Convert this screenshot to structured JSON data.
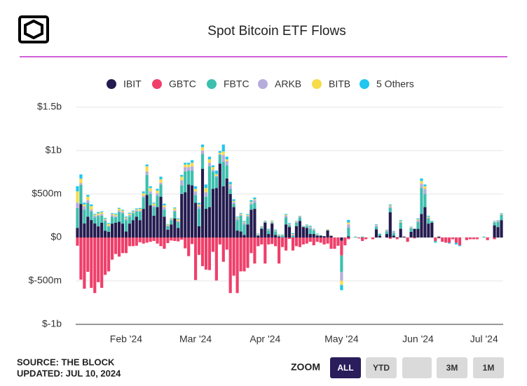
{
  "chart_data": {
    "type": "bar",
    "stacked": true,
    "title": "Spot Bitcoin ETF Flows",
    "categories": [
      null,
      null,
      null,
      null,
      null,
      null,
      null,
      null,
      null,
      null,
      null,
      null,
      null,
      null,
      "Feb '24",
      null,
      null,
      null,
      null,
      null,
      null,
      null,
      null,
      null,
      null,
      null,
      null,
      null,
      null,
      null,
      null,
      null,
      null,
      null,
      "Mar '24",
      null,
      null,
      null,
      null,
      null,
      null,
      null,
      null,
      null,
      null,
      null,
      null,
      null,
      null,
      null,
      null,
      null,
      null,
      null,
      "Apr '24",
      null,
      null,
      null,
      null,
      null,
      null,
      null,
      null,
      null,
      null,
      null,
      null,
      null,
      null,
      null,
      null,
      null,
      null,
      null,
      null,
      null,
      "May '24",
      null,
      null,
      null,
      null,
      null,
      null,
      null,
      null,
      null,
      null,
      null,
      null,
      null,
      null,
      null,
      null,
      null,
      null,
      null,
      null,
      null,
      "Jun '24",
      null,
      null,
      null,
      null,
      null,
      null,
      null,
      null,
      null,
      null,
      null,
      null,
      null,
      null,
      null,
      null,
      null,
      null,
      "Jul '24",
      null,
      null,
      null,
      null,
      null
    ],
    "series": [
      {
        "name": "IBIT",
        "color": "#241b4f",
        "values": [
          111,
          386,
          161,
          240,
          201,
          161,
          128,
          170,
          79,
          66,
          160,
          170,
          181,
          160,
          70,
          160,
          200,
          240,
          200,
          330,
          490,
          370,
          250,
          350,
          470,
          240,
          90,
          150,
          220,
          110,
          500,
          520,
          610,
          600,
          400,
          130,
          790,
          330,
          350,
          560,
          570,
          850,
          590,
          680,
          500,
          350,
          80,
          70,
          30,
          150,
          320,
          330,
          20,
          100,
          170,
          40,
          160,
          30,
          10,
          0,
          150,
          120,
          0,
          130,
          190,
          120,
          110,
          40,
          40,
          20,
          20,
          15,
          80,
          20,
          0,
          0,
          -37,
          0,
          12,
          0,
          0,
          0,
          0,
          0,
          0,
          0,
          93,
          19,
          0,
          40,
          290,
          20,
          4,
          100,
          10,
          0,
          65,
          100,
          100,
          270,
          350,
          160,
          170,
          0,
          10,
          0,
          0,
          0,
          0,
          0,
          0,
          0,
          0,
          0,
          0,
          0,
          0,
          0,
          0,
          0,
          140,
          120,
          200
        ]
      },
      {
        "name": "GBTC",
        "color": "#ef3f6a",
        "values": [
          -95,
          -485,
          -590,
          -395,
          -580,
          -640,
          -515,
          -580,
          -430,
          -390,
          -255,
          -190,
          -220,
          -180,
          -180,
          -100,
          -100,
          -95,
          -55,
          -70,
          -60,
          -50,
          -40,
          -70,
          -100,
          -130,
          -65,
          -35,
          -40,
          -45,
          -25,
          -125,
          -215,
          -75,
          -490,
          -200,
          -330,
          -370,
          -375,
          -165,
          -495,
          -80,
          -280,
          -140,
          -640,
          -440,
          -640,
          -390,
          -390,
          -350,
          -180,
          -300,
          -100,
          -80,
          -300,
          -80,
          -75,
          -100,
          -300,
          -110,
          -150,
          -17,
          -150,
          -100,
          -110,
          -80,
          -70,
          -50,
          -90,
          -50,
          -60,
          -80,
          -70,
          -130,
          -130,
          -95,
          -170,
          -90,
          -20,
          0,
          0,
          -10,
          -40,
          -20,
          0,
          -20,
          0,
          0,
          0,
          0,
          -15,
          0,
          -20,
          0,
          0,
          -50,
          0,
          -10,
          0,
          0,
          0,
          0,
          0,
          -40,
          -10,
          -50,
          -60,
          -60,
          -20,
          -60,
          -90,
          0,
          -30,
          -20,
          -20,
          -20,
          0,
          0,
          -30,
          0,
          -20,
          0,
          0
        ]
      },
      {
        "name": "FBTC",
        "color": "#3dbfae",
        "values": [
          230,
          220,
          160,
          160,
          100,
          70,
          120,
          80,
          110,
          60,
          80,
          60,
          110,
          120,
          130,
          80,
          80,
          60,
          100,
          130,
          230,
          130,
          100,
          130,
          140,
          80,
          40,
          50,
          80,
          70,
          100,
          240,
          160,
          170,
          90,
          200,
          170,
          140,
          470,
          200,
          130,
          100,
          280,
          150,
          60,
          40,
          120,
          180,
          120,
          90,
          60,
          70,
          5,
          10,
          10,
          40,
          10,
          40,
          10,
          20,
          80,
          20,
          20,
          40,
          40,
          0,
          20,
          60,
          40,
          10,
          5,
          0,
          5,
          0,
          0,
          0,
          -190,
          0,
          100,
          0,
          10,
          0,
          10,
          0,
          0,
          0,
          30,
          20,
          0,
          30,
          50,
          30,
          0,
          70,
          0,
          0,
          40,
          0,
          80,
          300,
          150,
          60,
          20,
          -10,
          0,
          0,
          0,
          0,
          0,
          0,
          0,
          0,
          0,
          0,
          0,
          0,
          0,
          10,
          0,
          0,
          30,
          60,
          60
        ]
      },
      {
        "name": "ARKB",
        "color": "#b6acdc",
        "values": [
          60,
          20,
          40,
          30,
          20,
          20,
          10,
          20,
          15,
          10,
          20,
          15,
          20,
          15,
          20,
          20,
          10,
          15,
          10,
          20,
          40,
          30,
          20,
          30,
          20,
          30,
          10,
          10,
          15,
          10,
          60,
          50,
          40,
          50,
          40,
          30,
          40,
          50,
          40,
          20,
          10,
          10,
          80,
          50,
          40,
          20,
          20,
          10,
          20,
          10,
          20,
          30,
          10,
          10,
          5,
          5,
          10,
          5,
          5,
          5,
          20,
          10,
          10,
          10,
          10,
          5,
          10,
          20,
          10,
          5,
          0,
          0,
          5,
          0,
          0,
          0,
          -100,
          0,
          40,
          0,
          0,
          0,
          0,
          0,
          0,
          0,
          20,
          0,
          0,
          10,
          20,
          20,
          0,
          10,
          0,
          0,
          10,
          0,
          20,
          50,
          60,
          10,
          0,
          0,
          0,
          0,
          0,
          0,
          0,
          0,
          0,
          0,
          0,
          0,
          0,
          0,
          0,
          0,
          0,
          0,
          10,
          10,
          10
        ]
      },
      {
        "name": "BITB",
        "color": "#f7dc4a",
        "values": [
          130,
          50,
          20,
          40,
          40,
          10,
          20,
          20,
          10,
          20,
          10,
          20,
          20,
          15,
          10,
          15,
          10,
          10,
          20,
          30,
          60,
          40,
          20,
          30,
          40,
          20,
          10,
          10,
          20,
          20,
          40,
          30,
          30,
          40,
          30,
          20,
          40,
          50,
          40,
          30,
          20,
          15,
          40,
          20,
          10,
          10,
          10,
          10,
          10,
          10,
          10,
          10,
          5,
          5,
          5,
          5,
          10,
          5,
          5,
          5,
          10,
          5,
          10,
          5,
          5,
          5,
          5,
          5,
          5,
          5,
          0,
          0,
          5,
          0,
          0,
          0,
          -50,
          0,
          20,
          0,
          0,
          0,
          0,
          0,
          0,
          0,
          5,
          0,
          0,
          5,
          10,
          0,
          0,
          10,
          0,
          0,
          5,
          0,
          10,
          30,
          30,
          10,
          0,
          0,
          0,
          0,
          0,
          0,
          0,
          0,
          0,
          0,
          0,
          0,
          0,
          0,
          0,
          0,
          0,
          0,
          5,
          5,
          5
        ]
      },
      {
        "name": "5 Others",
        "color": "#1fc7ef",
        "values": [
          60,
          50,
          20,
          20,
          20,
          10,
          15,
          10,
          10,
          10,
          10,
          10,
          10,
          10,
          10,
          10,
          10,
          10,
          10,
          20,
          20,
          20,
          10,
          20,
          30,
          20,
          5,
          5,
          10,
          10,
          20,
          20,
          20,
          30,
          30,
          20,
          30,
          40,
          30,
          20,
          40,
          20,
          80,
          30,
          30,
          20,
          10,
          10,
          10,
          10,
          20,
          20,
          5,
          5,
          5,
          10,
          5,
          10,
          5,
          5,
          10,
          10,
          10,
          5,
          5,
          5,
          5,
          10,
          5,
          5,
          0,
          0,
          0,
          0,
          0,
          0,
          -60,
          0,
          30,
          0,
          0,
          0,
          0,
          0,
          0,
          0,
          5,
          5,
          0,
          5,
          10,
          5,
          0,
          10,
          0,
          0,
          5,
          0,
          10,
          30,
          20,
          10,
          0,
          -10,
          0,
          0,
          0,
          -10,
          0,
          -20,
          -10,
          0,
          0,
          0,
          0,
          0,
          0,
          0,
          0,
          0,
          5,
          5,
          5
        ]
      }
    ],
    "ylim": [
      -1000,
      1500
    ],
    "yticks": [
      {
        "value": -1000,
        "label": "$-1b"
      },
      {
        "value": -500,
        "label": "$-500m"
      },
      {
        "value": 0,
        "label": "$0"
      },
      {
        "value": 500,
        "label": "$500m"
      },
      {
        "value": 1000,
        "label": "$1b"
      },
      {
        "value": 1500,
        "label": "$1.5b"
      }
    ],
    "grid": true,
    "legend": "top"
  },
  "footer": {
    "source": "SOURCE: THE BLOCK",
    "updated": "UPDATED: JUL 10, 2024"
  },
  "zoom": {
    "label": "ZOOM",
    "buttons": [
      "ALL",
      "YTD",
      "3M",
      "1M"
    ],
    "active": 0
  }
}
